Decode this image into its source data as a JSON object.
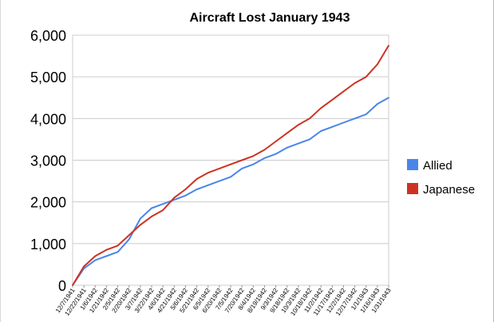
{
  "chart_data": {
    "type": "line",
    "title": "Aircraft Lost January 1943",
    "xlabel": "",
    "ylabel": "",
    "ylim": [
      0,
      6000
    ],
    "y_ticks": [
      "0",
      "1,000",
      "2,000",
      "3,000",
      "4,000",
      "5,000",
      "6,000"
    ],
    "y_tick_values": [
      0,
      1000,
      2000,
      3000,
      4000,
      5000,
      6000
    ],
    "x_ticks": [
      "12/7/1941",
      "12/22/1941",
      "1/6/1942",
      "1/21/1942",
      "2/5/1942",
      "2/20/1942",
      "3/7/1942",
      "3/22/1942",
      "4/6/1942",
      "4/21/1942",
      "5/6/1942",
      "5/21/1942",
      "6/5/1942",
      "6/20/1942",
      "7/5/1942",
      "7/20/1942",
      "8/4/1942",
      "8/19/1942",
      "9/3/1942",
      "9/18/1942",
      "10/3/1942",
      "10/18/1942",
      "11/2/1942",
      "11/17/1942",
      "12/2/1942",
      "12/17/1942",
      "1/1/1943",
      "1/16/1943",
      "1/31/1943"
    ],
    "grid": true,
    "legend_position": "right",
    "series": [
      {
        "name": "Allied",
        "color": "#4a86e8",
        "x": [
          "12/7/1941",
          "12/22/1941",
          "1/6/1942",
          "1/21/1942",
          "2/5/1942",
          "2/20/1942",
          "3/7/1942",
          "3/22/1942",
          "4/6/1942",
          "4/21/1942",
          "5/6/1942",
          "5/21/1942",
          "6/5/1942",
          "6/20/1942",
          "7/5/1942",
          "7/20/1942",
          "8/4/1942",
          "8/19/1942",
          "9/3/1942",
          "9/18/1942",
          "10/3/1942",
          "10/18/1942",
          "11/2/1942",
          "11/17/1942",
          "12/2/1942",
          "12/17/1942",
          "1/1/1943",
          "1/16/1943",
          "1/31/1943"
        ],
        "values": [
          0,
          400,
          600,
          700,
          800,
          1100,
          1600,
          1850,
          1950,
          2050,
          2150,
          2300,
          2400,
          2500,
          2600,
          2800,
          2900,
          3050,
          3150,
          3300,
          3400,
          3500,
          3700,
          3800,
          3900,
          4000,
          4100,
          4350,
          4500
        ]
      },
      {
        "name": "Japanese",
        "color": "#cc3322",
        "x": [
          "12/7/1941",
          "12/22/1941",
          "1/6/1942",
          "1/21/1942",
          "2/5/1942",
          "2/20/1942",
          "3/7/1942",
          "3/22/1942",
          "4/6/1942",
          "4/21/1942",
          "5/6/1942",
          "5/21/1942",
          "6/5/1942",
          "6/20/1942",
          "7/5/1942",
          "7/20/1942",
          "8/4/1942",
          "8/19/1942",
          "9/3/1942",
          "9/18/1942",
          "10/3/1942",
          "10/18/1942",
          "11/2/1942",
          "11/17/1942",
          "12/2/1942",
          "12/17/1942",
          "1/1/1943",
          "1/16/1943",
          "1/31/1943"
        ],
        "values": [
          0,
          450,
          700,
          850,
          950,
          1200,
          1450,
          1650,
          1800,
          2100,
          2300,
          2550,
          2700,
          2800,
          2900,
          3000,
          3100,
          3250,
          3450,
          3650,
          3850,
          4000,
          4250,
          4450,
          4650,
          4850,
          5000,
          5300,
          5750
        ]
      }
    ]
  }
}
